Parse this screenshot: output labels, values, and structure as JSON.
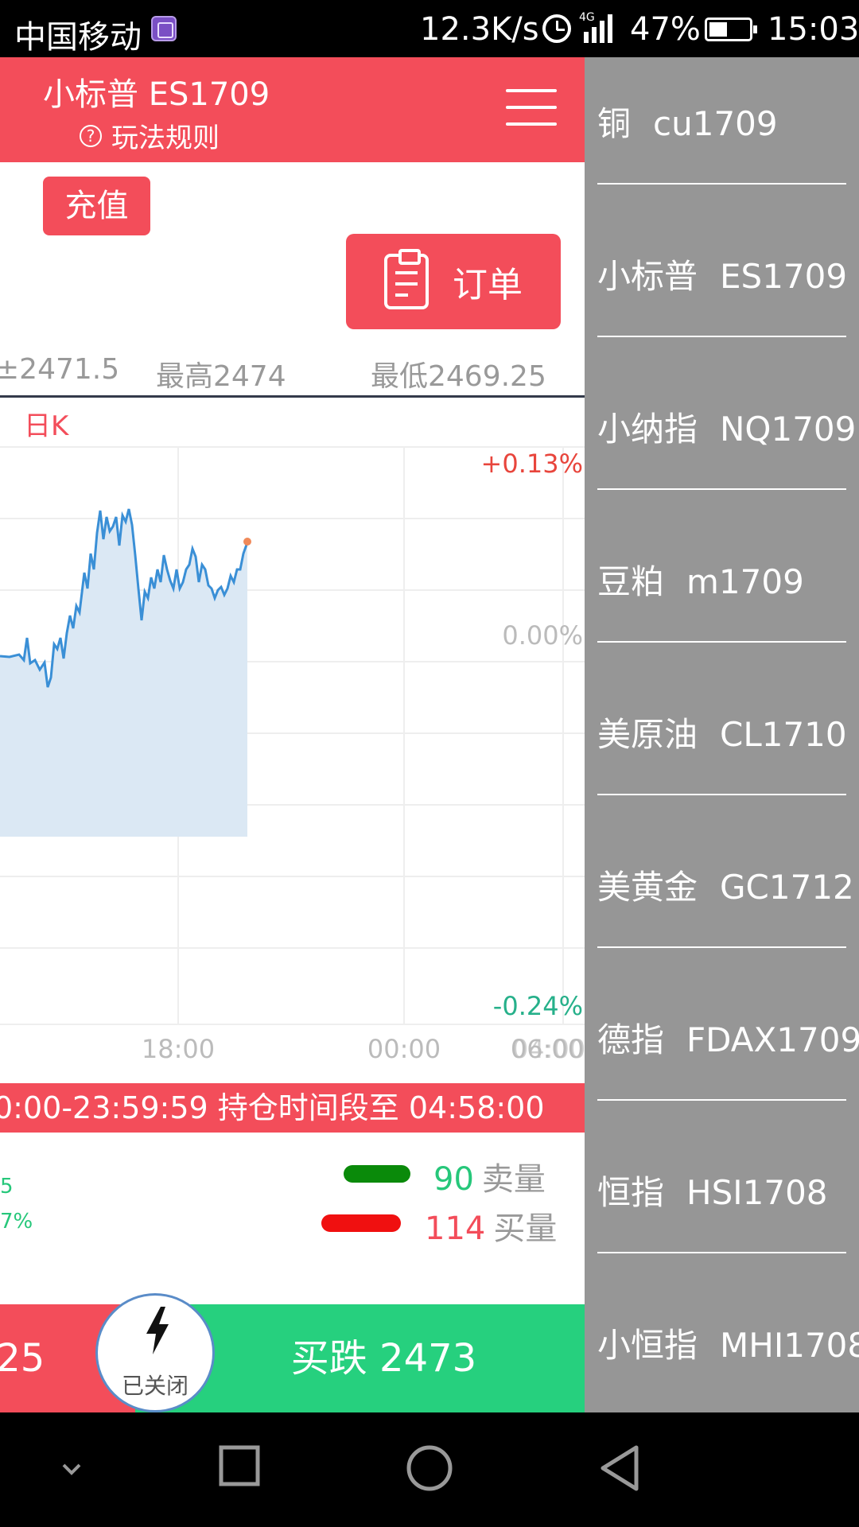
{
  "status_bar": {
    "carrier": "中国移动",
    "network_speed": "12.3K/s",
    "network_type": "4G",
    "battery": "47%",
    "time": "15:03"
  },
  "header": {
    "title": "小标普 ES1709",
    "rules_label": "玩法规则"
  },
  "actions": {
    "recharge": "充值",
    "order": "订单"
  },
  "stats": {
    "current": "2471.5",
    "high": "最高2474",
    "low": "最低2469.25"
  },
  "chart_tab": "日K",
  "chart_data": {
    "type": "area",
    "y_labels": [
      "+0.13%",
      "0.00%",
      "-0.24%"
    ],
    "x_labels": [
      "18:00",
      "00:00",
      "06:00"
    ],
    "x_labels_overlap": "04:00",
    "last_point": "2471.5",
    "line_color": "#3a8fd6",
    "fill_color": "#dbe8f4"
  },
  "notice": "0:00-23:59:59 持仓时间段至 04:58:00",
  "volume": {
    "left_value": "5",
    "left_percent": "7%",
    "sell_count": "90",
    "sell_label": "卖量",
    "buy_count": "114",
    "buy_label": "买量"
  },
  "bottom": {
    "buy_up_partial": ".25",
    "status": "已关闭",
    "buy_down": "买跌 2473"
  },
  "drawer": {
    "items": [
      {
        "name": "铜",
        "code": "cu1709"
      },
      {
        "name": "小标普",
        "code": "ES1709"
      },
      {
        "name": "小纳指",
        "code": "NQ1709"
      },
      {
        "name": "豆粕",
        "code": "m1709"
      },
      {
        "name": "美原油",
        "code": "CL1710"
      },
      {
        "name": "美黄金",
        "code": "GC1712"
      },
      {
        "name": "德指",
        "code": "FDAX1709"
      },
      {
        "name": "恒指",
        "code": "HSI1708"
      },
      {
        "name": "小恒指",
        "code": "MHI1708"
      }
    ]
  },
  "colors": {
    "primary_red": "#f34d5a",
    "green": "#26d07e",
    "drawer_gray": "#969696"
  }
}
